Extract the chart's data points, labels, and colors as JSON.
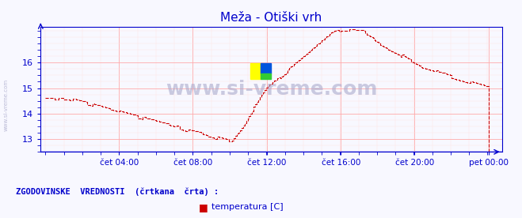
{
  "title": "Meža - Otiški vrh",
  "title_color": "#0000cc",
  "bg_color": "#f8f8ff",
  "plot_bg_color": "#f8f8ff",
  "line_color": "#cc0000",
  "axis_color": "#0000cc",
  "grid_color": "#ffaaaa",
  "grid_minor_color": "#ffe0e0",
  "watermark": "www.si-vreme.com",
  "watermark_color": "#aaaacc",
  "xlabel_color": "#0000cc",
  "ylabel_color": "#0000cc",
  "legend_text": "ZGODOVINSKE  VREDNOSTI  (črtkana  črta) :",
  "legend_label": "temperatura [C]",
  "legend_color": "#0000cc",
  "yticks": [
    13,
    14,
    15,
    16
  ],
  "ylim": [
    12.5,
    17.4
  ],
  "xtick_labels": [
    "čet 04:00",
    "čet 08:00",
    "čet 12:00",
    "čet 16:00",
    "čet 20:00",
    "pet 00:00"
  ],
  "xtick_positions": [
    0.167,
    0.333,
    0.5,
    0.667,
    0.833,
    1.0
  ],
  "n_points": 288,
  "figsize": [
    6.59,
    2.76
  ],
  "dpi": 100
}
